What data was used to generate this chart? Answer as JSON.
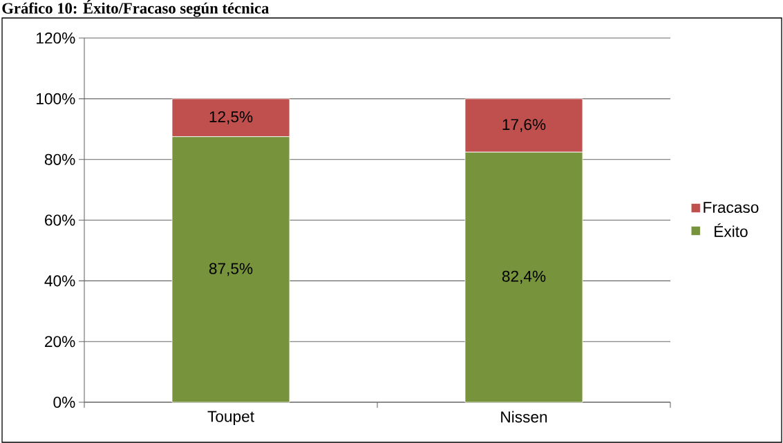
{
  "chart_data": {
    "type": "bar",
    "title": "Gráfico 10: Éxito/Fracaso según técnica",
    "stacked": true,
    "categories": [
      "Toupet",
      "Nissen"
    ],
    "series": [
      {
        "name": "Éxito",
        "color": "#77933c",
        "values": [
          87.5,
          82.4
        ],
        "value_labels": [
          "87,5%",
          "82,4%"
        ]
      },
      {
        "name": "Fracaso",
        "color": "#c0504d",
        "values": [
          12.5,
          17.6
        ],
        "value_labels": [
          "12,5%",
          "17,6%"
        ]
      }
    ],
    "ylim": [
      0,
      120
    ],
    "yticks": [
      {
        "value": 0,
        "label": "0%"
      },
      {
        "value": 20,
        "label": "20%"
      },
      {
        "value": 40,
        "label": "40%"
      },
      {
        "value": 60,
        "label": "60%"
      },
      {
        "value": 80,
        "label": "80%"
      },
      {
        "value": 100,
        "label": "100%"
      },
      {
        "value": 120,
        "label": "120%"
      }
    ],
    "grid": "y",
    "legend": "right"
  }
}
